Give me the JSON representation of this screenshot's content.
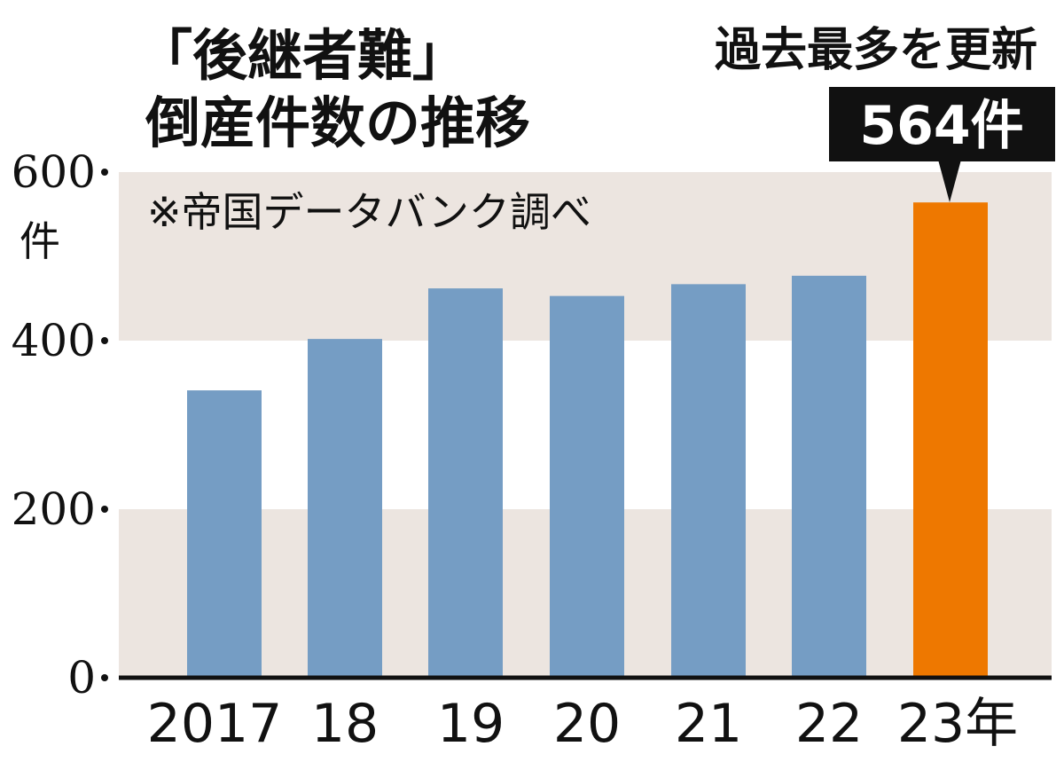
{
  "title_lines": [
    "「後継者難」",
    "倒産件数の推移"
  ],
  "source_note": "※帝国データバンク調べ",
  "headline": "過去最多を更新",
  "callout": "564件",
  "unit": "件",
  "colors": {
    "bar": "#759dc4",
    "highlight": "#ee7800",
    "band": "#ece5e0",
    "axis": "#111111",
    "callout_bg": "#111111"
  },
  "chart_data": {
    "type": "bar",
    "categories": [
      "2017",
      "18",
      "19",
      "20",
      "21",
      "22",
      "23年"
    ],
    "values": [
      341,
      402,
      462,
      453,
      467,
      477,
      564
    ],
    "highlight_index": 6,
    "ylim": [
      0,
      600
    ],
    "yticks": [
      {
        "value": 0,
        "label": "0"
      },
      {
        "value": 200,
        "label": "200"
      },
      {
        "value": 400,
        "label": "400"
      },
      {
        "value": 600,
        "label": "600"
      }
    ],
    "bands": [
      [
        0,
        200
      ],
      [
        400,
        600
      ]
    ],
    "title": "「後継者難」倒産件数の推移",
    "xlabel": "",
    "ylabel": "件",
    "grid": false,
    "legend": "none"
  }
}
